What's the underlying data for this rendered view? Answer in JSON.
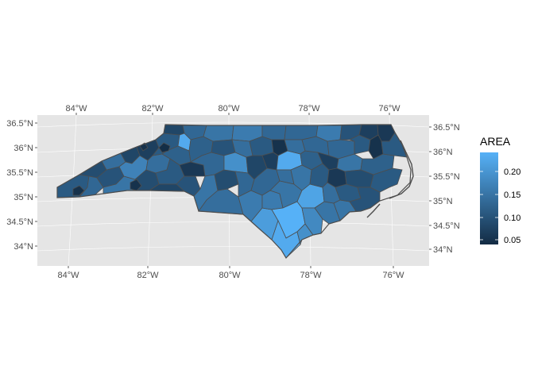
{
  "map": {
    "type": "choropleth",
    "region": "North Carolina counties",
    "panel_background": "#e5e5e5",
    "grid_color": "#ffffff",
    "state_outline_color": "#4d4d4d",
    "x_ticks_top": [
      "84°W",
      "82°W",
      "80°W",
      "78°W",
      "76°W"
    ],
    "x_ticks_bottom": [
      "84°W",
      "82°W",
      "80°W",
      "78°W",
      "76°W"
    ],
    "y_ticks_left": [
      "36.5°N",
      "36°N",
      "35.5°N",
      "35°N",
      "34.5°N",
      "34°N"
    ],
    "y_ticks_right": [
      "36.5°N",
      "36°N",
      "35.5°N",
      "35°N",
      "34.5°N",
      "34°N"
    ],
    "lon_values": [
      -84,
      -82,
      -80,
      -78,
      -76
    ],
    "lat_values": [
      36.5,
      36,
      35.5,
      35,
      34.5,
      34
    ],
    "fill_scale": {
      "low_color": "#132b43",
      "high_color": "#56b1f7",
      "min": 0.042,
      "max": 0.241
    }
  },
  "legend": {
    "title": "AREA",
    "labels": [
      "0.20",
      "0.15",
      "0.10",
      "0.05"
    ],
    "values": [
      0.2,
      0.15,
      0.1,
      0.05
    ]
  }
}
